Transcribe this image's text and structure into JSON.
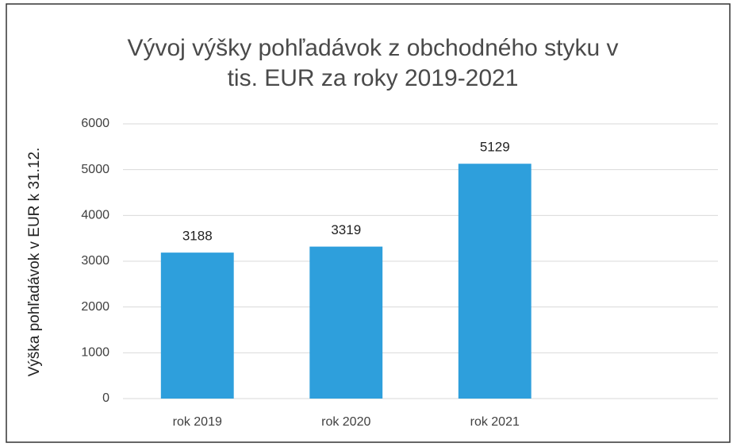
{
  "chart_data": {
    "type": "bar",
    "title": [
      "Vývoj výšky pohľadávok z obchodného styku v",
      "tis. EUR za roky 2019-2021"
    ],
    "y_label": "Výška pohľadávok v EUR k 31.12.",
    "categories": [
      "rok 2019",
      "rok 2020",
      "rok 2021",
      null
    ],
    "values": [
      3188,
      3319,
      5129,
      null
    ],
    "color": "#2e9fdc",
    "ylim": [
      0,
      6000
    ],
    "yticks": [
      0,
      1000,
      2000,
      3000,
      4000,
      5000,
      6000
    ],
    "grid": true,
    "data_labels": true
  }
}
